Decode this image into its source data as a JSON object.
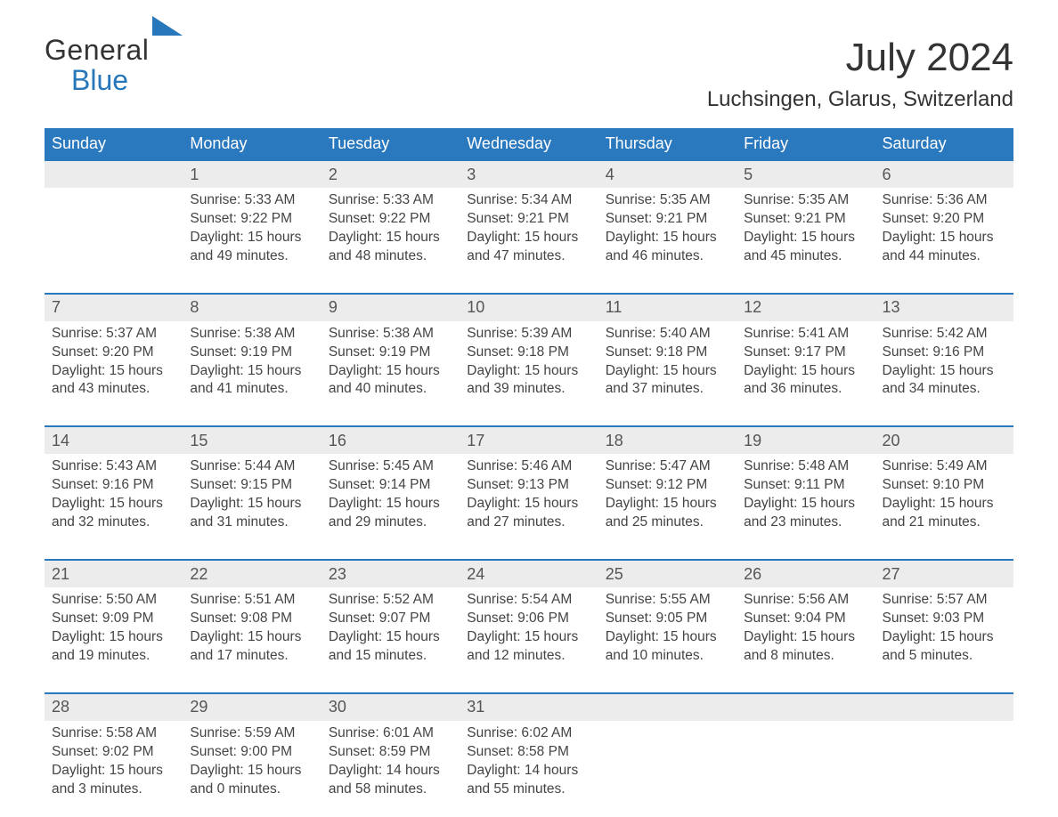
{
  "brand": {
    "line1": "General",
    "line2": "Blue",
    "accent_color": "#2777ba"
  },
  "title": "July 2024",
  "location": "Luchsingen, Glarus, Switzerland",
  "colors": {
    "header_bg": "#2a78be",
    "header_text": "#ffffff",
    "daynum_bg": "#ececec",
    "daynum_border_top": "#2a78be",
    "body_text": "#444444",
    "page_bg": "#ffffff"
  },
  "days_of_week": [
    "Sunday",
    "Monday",
    "Tuesday",
    "Wednesday",
    "Thursday",
    "Friday",
    "Saturday"
  ],
  "weeks": [
    {
      "nums": [
        "",
        "1",
        "2",
        "3",
        "4",
        "5",
        "6"
      ],
      "cells": [
        null,
        {
          "sunrise": "Sunrise: 5:33 AM",
          "sunset": "Sunset: 9:22 PM",
          "day1": "Daylight: 15 hours",
          "day2": "and 49 minutes."
        },
        {
          "sunrise": "Sunrise: 5:33 AM",
          "sunset": "Sunset: 9:22 PM",
          "day1": "Daylight: 15 hours",
          "day2": "and 48 minutes."
        },
        {
          "sunrise": "Sunrise: 5:34 AM",
          "sunset": "Sunset: 9:21 PM",
          "day1": "Daylight: 15 hours",
          "day2": "and 47 minutes."
        },
        {
          "sunrise": "Sunrise: 5:35 AM",
          "sunset": "Sunset: 9:21 PM",
          "day1": "Daylight: 15 hours",
          "day2": "and 46 minutes."
        },
        {
          "sunrise": "Sunrise: 5:35 AM",
          "sunset": "Sunset: 9:21 PM",
          "day1": "Daylight: 15 hours",
          "day2": "and 45 minutes."
        },
        {
          "sunrise": "Sunrise: 5:36 AM",
          "sunset": "Sunset: 9:20 PM",
          "day1": "Daylight: 15 hours",
          "day2": "and 44 minutes."
        }
      ]
    },
    {
      "nums": [
        "7",
        "8",
        "9",
        "10",
        "11",
        "12",
        "13"
      ],
      "cells": [
        {
          "sunrise": "Sunrise: 5:37 AM",
          "sunset": "Sunset: 9:20 PM",
          "day1": "Daylight: 15 hours",
          "day2": "and 43 minutes."
        },
        {
          "sunrise": "Sunrise: 5:38 AM",
          "sunset": "Sunset: 9:19 PM",
          "day1": "Daylight: 15 hours",
          "day2": "and 41 minutes."
        },
        {
          "sunrise": "Sunrise: 5:38 AM",
          "sunset": "Sunset: 9:19 PM",
          "day1": "Daylight: 15 hours",
          "day2": "and 40 minutes."
        },
        {
          "sunrise": "Sunrise: 5:39 AM",
          "sunset": "Sunset: 9:18 PM",
          "day1": "Daylight: 15 hours",
          "day2": "and 39 minutes."
        },
        {
          "sunrise": "Sunrise: 5:40 AM",
          "sunset": "Sunset: 9:18 PM",
          "day1": "Daylight: 15 hours",
          "day2": "and 37 minutes."
        },
        {
          "sunrise": "Sunrise: 5:41 AM",
          "sunset": "Sunset: 9:17 PM",
          "day1": "Daylight: 15 hours",
          "day2": "and 36 minutes."
        },
        {
          "sunrise": "Sunrise: 5:42 AM",
          "sunset": "Sunset: 9:16 PM",
          "day1": "Daylight: 15 hours",
          "day2": "and 34 minutes."
        }
      ]
    },
    {
      "nums": [
        "14",
        "15",
        "16",
        "17",
        "18",
        "19",
        "20"
      ],
      "cells": [
        {
          "sunrise": "Sunrise: 5:43 AM",
          "sunset": "Sunset: 9:16 PM",
          "day1": "Daylight: 15 hours",
          "day2": "and 32 minutes."
        },
        {
          "sunrise": "Sunrise: 5:44 AM",
          "sunset": "Sunset: 9:15 PM",
          "day1": "Daylight: 15 hours",
          "day2": "and 31 minutes."
        },
        {
          "sunrise": "Sunrise: 5:45 AM",
          "sunset": "Sunset: 9:14 PM",
          "day1": "Daylight: 15 hours",
          "day2": "and 29 minutes."
        },
        {
          "sunrise": "Sunrise: 5:46 AM",
          "sunset": "Sunset: 9:13 PM",
          "day1": "Daylight: 15 hours",
          "day2": "and 27 minutes."
        },
        {
          "sunrise": "Sunrise: 5:47 AM",
          "sunset": "Sunset: 9:12 PM",
          "day1": "Daylight: 15 hours",
          "day2": "and 25 minutes."
        },
        {
          "sunrise": "Sunrise: 5:48 AM",
          "sunset": "Sunset: 9:11 PM",
          "day1": "Daylight: 15 hours",
          "day2": "and 23 minutes."
        },
        {
          "sunrise": "Sunrise: 5:49 AM",
          "sunset": "Sunset: 9:10 PM",
          "day1": "Daylight: 15 hours",
          "day2": "and 21 minutes."
        }
      ]
    },
    {
      "nums": [
        "21",
        "22",
        "23",
        "24",
        "25",
        "26",
        "27"
      ],
      "cells": [
        {
          "sunrise": "Sunrise: 5:50 AM",
          "sunset": "Sunset: 9:09 PM",
          "day1": "Daylight: 15 hours",
          "day2": "and 19 minutes."
        },
        {
          "sunrise": "Sunrise: 5:51 AM",
          "sunset": "Sunset: 9:08 PM",
          "day1": "Daylight: 15 hours",
          "day2": "and 17 minutes."
        },
        {
          "sunrise": "Sunrise: 5:52 AM",
          "sunset": "Sunset: 9:07 PM",
          "day1": "Daylight: 15 hours",
          "day2": "and 15 minutes."
        },
        {
          "sunrise": "Sunrise: 5:54 AM",
          "sunset": "Sunset: 9:06 PM",
          "day1": "Daylight: 15 hours",
          "day2": "and 12 minutes."
        },
        {
          "sunrise": "Sunrise: 5:55 AM",
          "sunset": "Sunset: 9:05 PM",
          "day1": "Daylight: 15 hours",
          "day2": "and 10 minutes."
        },
        {
          "sunrise": "Sunrise: 5:56 AM",
          "sunset": "Sunset: 9:04 PM",
          "day1": "Daylight: 15 hours",
          "day2": "and 8 minutes."
        },
        {
          "sunrise": "Sunrise: 5:57 AM",
          "sunset": "Sunset: 9:03 PM",
          "day1": "Daylight: 15 hours",
          "day2": "and 5 minutes."
        }
      ]
    },
    {
      "nums": [
        "28",
        "29",
        "30",
        "31",
        "",
        "",
        ""
      ],
      "cells": [
        {
          "sunrise": "Sunrise: 5:58 AM",
          "sunset": "Sunset: 9:02 PM",
          "day1": "Daylight: 15 hours",
          "day2": "and 3 minutes."
        },
        {
          "sunrise": "Sunrise: 5:59 AM",
          "sunset": "Sunset: 9:00 PM",
          "day1": "Daylight: 15 hours",
          "day2": "and 0 minutes."
        },
        {
          "sunrise": "Sunrise: 6:01 AM",
          "sunset": "Sunset: 8:59 PM",
          "day1": "Daylight: 14 hours",
          "day2": "and 58 minutes."
        },
        {
          "sunrise": "Sunrise: 6:02 AM",
          "sunset": "Sunset: 8:58 PM",
          "day1": "Daylight: 14 hours",
          "day2": "and 55 minutes."
        },
        null,
        null,
        null
      ]
    }
  ]
}
